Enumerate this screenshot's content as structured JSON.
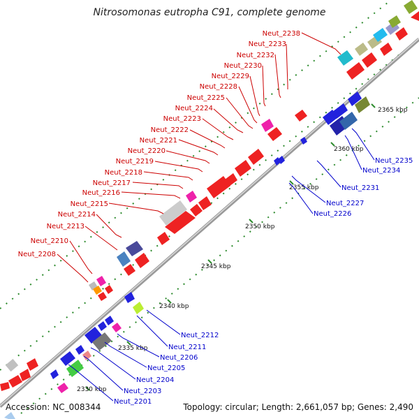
{
  "title": "Nitrosomonas eutropha C91, complete genome",
  "footer": {
    "accession": "Accession: NC_008344",
    "info": "Topology: circular; Length: 2,661,057 bp; Genes: 2,490"
  },
  "colors": {
    "backbone": "#8c8c8c",
    "tick": "#2e8b2e",
    "label_top": "#cc0000",
    "label_bottom": "#0000cc"
  },
  "ticks": [
    "2330 kbp",
    "2335 kbp",
    "2340 kbp",
    "2345 kbp",
    "2350 kbp",
    "2355 kbp",
    "2360 kbp",
    "2365 kbp"
  ],
  "labels_top": [
    "Neut_2238",
    "Neut_2233",
    "Neut_2232",
    "Neut_2230",
    "Neut_2229",
    "Neut_2228",
    "Neut_2225",
    "Neut_2224",
    "Neut_2223",
    "Neut_2222",
    "Neut_2221",
    "Neut_2220",
    "Neut_2219",
    "Neut_2218",
    "Neut_2217",
    "Neut_2216",
    "Neut_2215",
    "Neut_2214",
    "Neut_2213",
    "Neut_2210",
    "Neut_2208"
  ],
  "labels_bottom": [
    "Neut_2235",
    "Neut_2234",
    "Neut_2231",
    "Neut_2227",
    "Neut_2226",
    "Neut_2212",
    "Neut_2211",
    "Neut_2206",
    "Neut_2205",
    "Neut_2204",
    "Neut_2203",
    "Neut_2201"
  ]
}
